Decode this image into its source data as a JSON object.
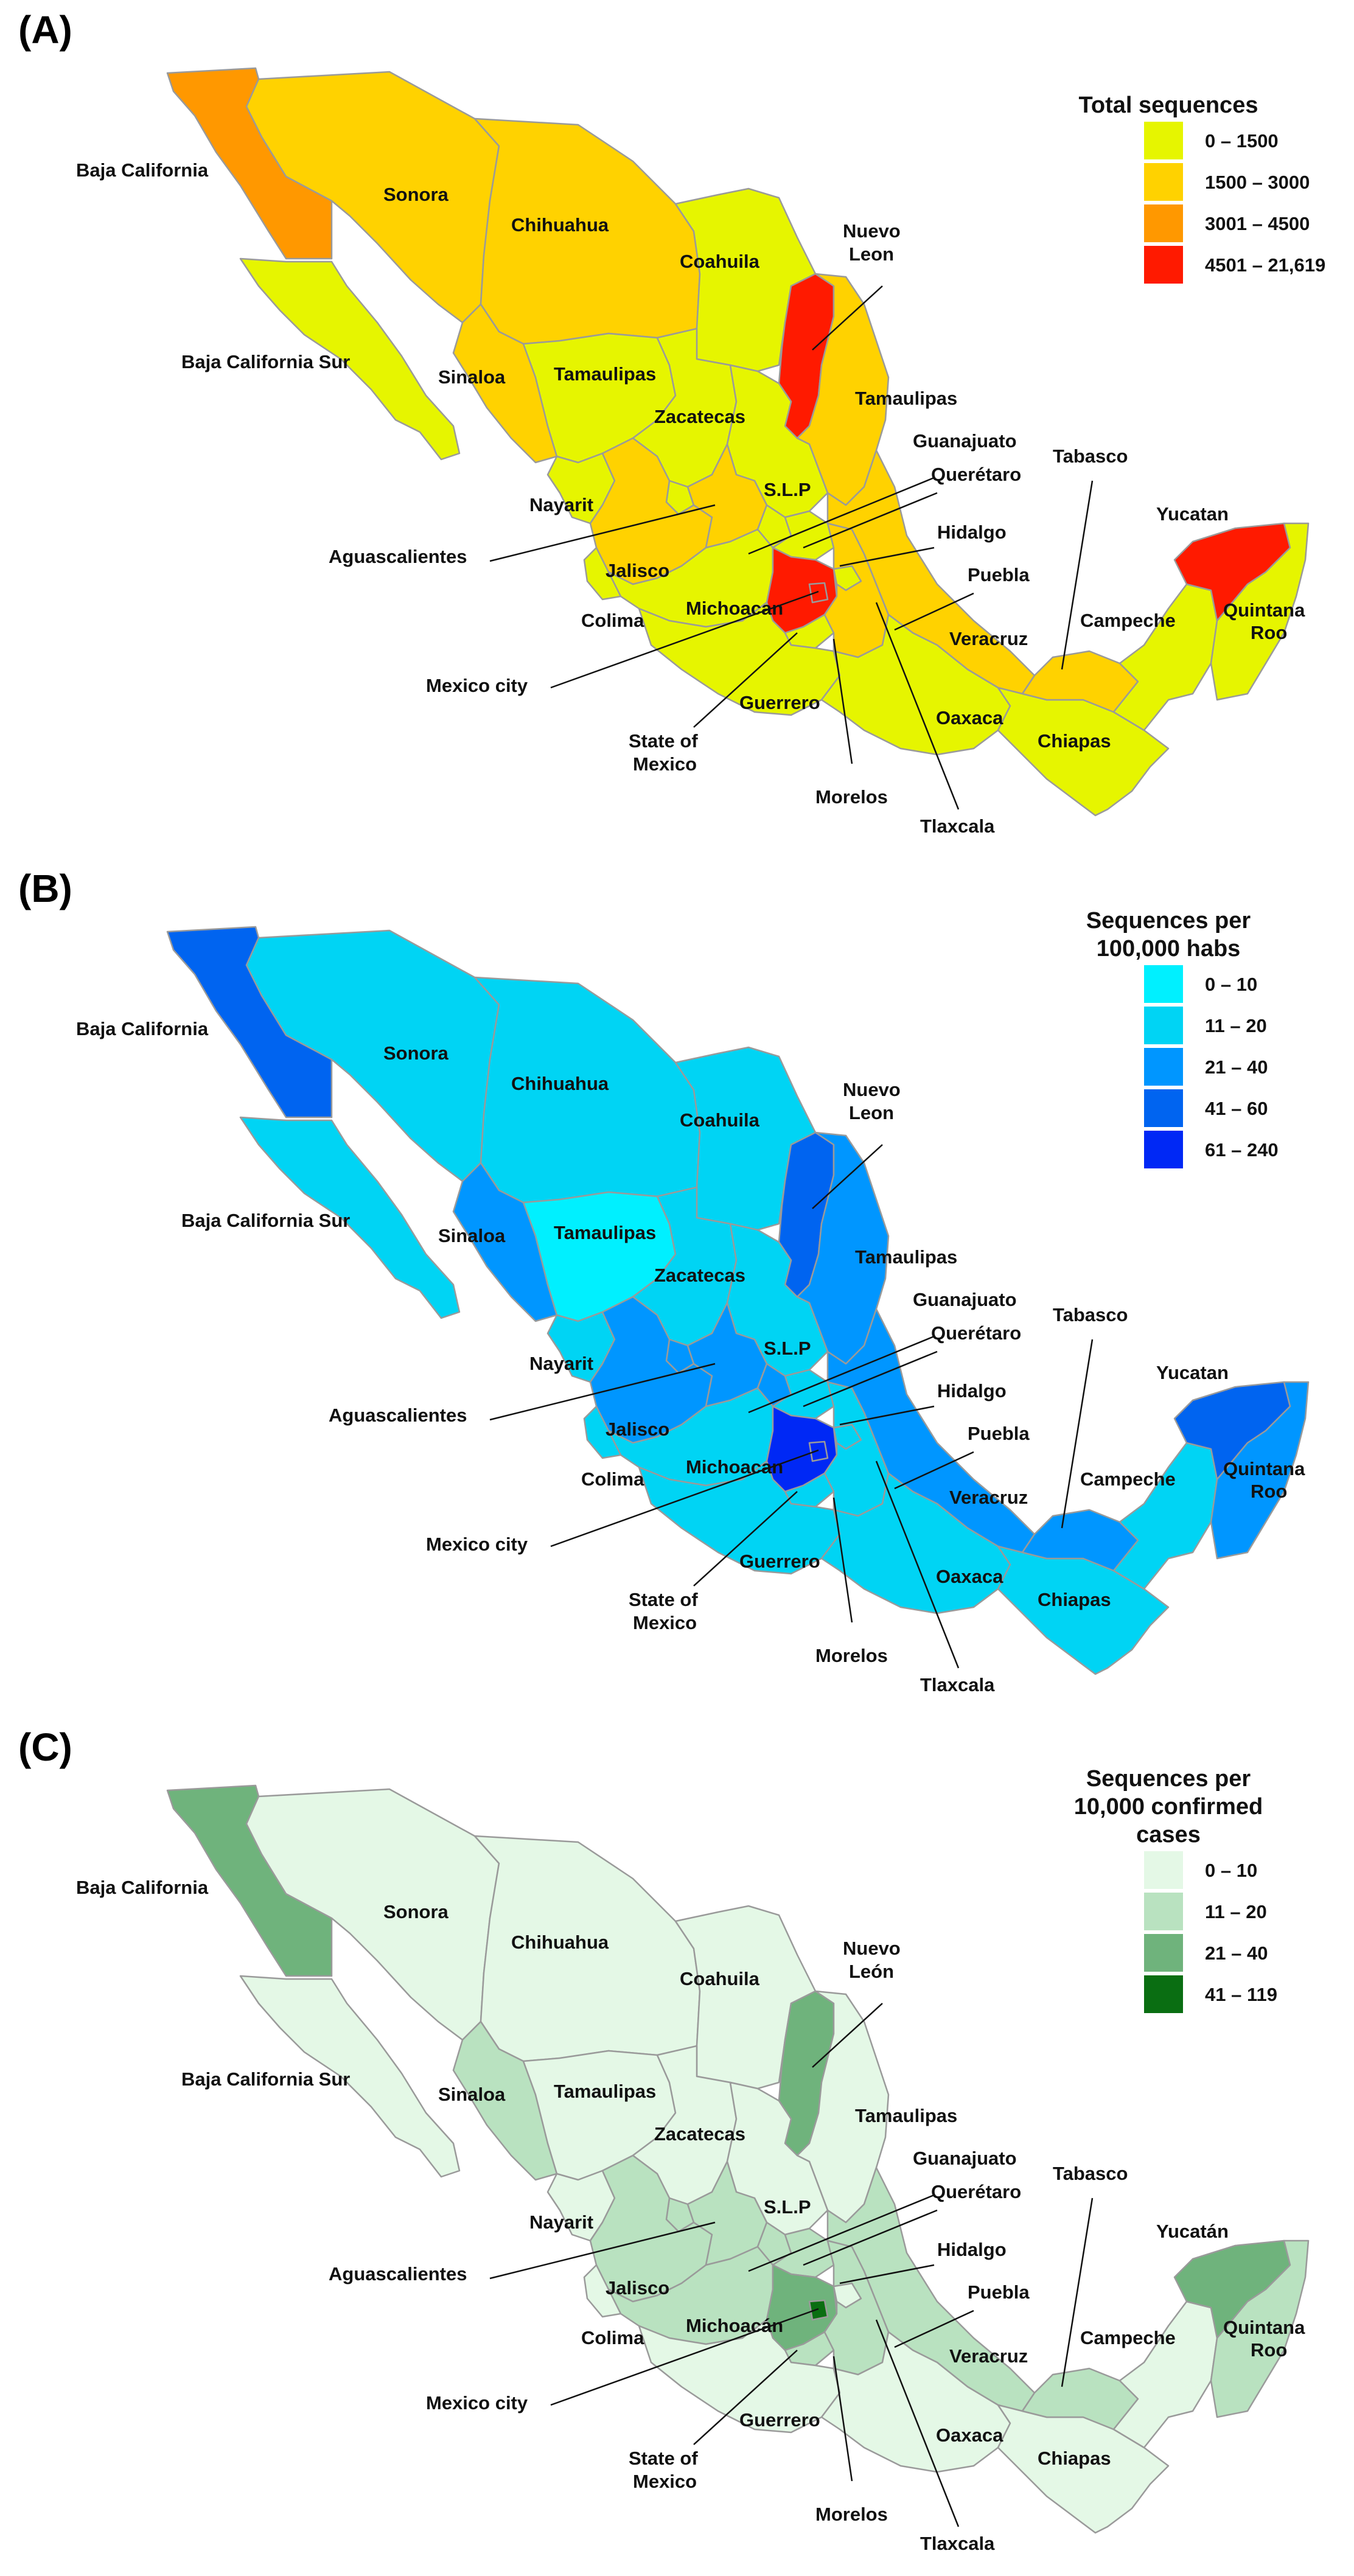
{
  "panels": [
    {
      "label": "(A)",
      "legend": {
        "title": "Total sequences",
        "items": [
          {
            "label": "0 – 1500",
            "color": "#e6f500"
          },
          {
            "label": "1500 – 3000",
            "color": "#ffd200"
          },
          {
            "label": "3001 – 4500",
            "color": "#ff9800"
          },
          {
            "label": "4501 – 21,619",
            "color": "#ff1a00"
          }
        ]
      },
      "states": {
        "baja_california": "#ff9800",
        "baja_california_sur": "#e6f500",
        "sonora": "#ffd200",
        "chihuahua": "#ffd200",
        "coahuila": "#e6f500",
        "nuevo_leon": "#ff1a00",
        "tamaulipas": "#ffd200",
        "sinaloa": "#ffd200",
        "durango": "#e6f500",
        "zacatecas": "#e6f500",
        "slp": "#e6f500",
        "nayarit": "#e6f500",
        "jalisco": "#ffd200",
        "aguascalientes": "#e6f500",
        "guanajuato": "#ffd200",
        "queretaro": "#e6f500",
        "hidalgo": "#e6f500",
        "michoacan": "#e6f500",
        "colima": "#e6f500",
        "mexico": "#ff1a00",
        "cdmx": "#ff1a00",
        "morelos": "#e6f500",
        "tlaxcala": "#e6f500",
        "puebla": "#ffd200",
        "veracruz": "#ffd200",
        "guerrero": "#e6f500",
        "oaxaca": "#e6f500",
        "chiapas": "#e6f500",
        "tabasco": "#ffd200",
        "campeche": "#e6f500",
        "yucatan": "#ff1a00",
        "quintana_roo": "#e6f500"
      },
      "names": {
        "baja_california": "Baja California",
        "baja_california_sur": "Baja California Sur",
        "sonora": "Sonora",
        "chihuahua": "Chihuahua",
        "coahuila": "Coahuila",
        "nuevo_leon_1": "Nuevo",
        "nuevo_leon_2": "Leon",
        "sinaloa": "Sinaloa",
        "durango_label": "Tamaulipas",
        "tamaulipas": "Tamaulipas",
        "zacatecas": "Zacatecas",
        "guanajuato": "Guanajuato",
        "slp": "S.L.P",
        "queretaro": "Querétaro",
        "nayarit": "Nayarit",
        "aguascalientes": "Aguascalientes",
        "hidalgo": "Hidalgo",
        "jalisco": "Jalisco",
        "puebla": "Puebla",
        "colima": "Colima",
        "michoacan": "Michoacan",
        "veracruz": "Veracruz",
        "mexico_city": "Mexico city",
        "guerrero": "Guerrero",
        "oaxaca": "Oaxaca",
        "state_of_mexico_1": "State of",
        "state_of_mexico_2": "Mexico",
        "morelos": "Morelos",
        "tlaxcala": "Tlaxcala",
        "chiapas": "Chiapas",
        "tabasco": "Tabasco",
        "campeche": "Campeche",
        "yucatan": "Yucatan",
        "quintana_roo_1": "Quintana",
        "quintana_roo_2": "Roo"
      }
    },
    {
      "label": "(B)",
      "legend": {
        "title": "Sequences per\n100,000 habs",
        "items": [
          {
            "label": "0 – 10",
            "color": "#00f0ff"
          },
          {
            "label": "11 – 20",
            "color": "#00d4f4"
          },
          {
            "label": "21 – 40",
            "color": "#0096ff"
          },
          {
            "label": "41 – 60",
            "color": "#0064f0"
          },
          {
            "label": "61 – 240",
            "color": "#0028f5"
          }
        ]
      },
      "states": {
        "baja_california": "#0064f0",
        "baja_california_sur": "#00d4f4",
        "sonora": "#00d4f4",
        "chihuahua": "#00d4f4",
        "coahuila": "#00d4f4",
        "nuevo_leon": "#0064f0",
        "tamaulipas": "#0096ff",
        "sinaloa": "#0096ff",
        "durango": "#00f0ff",
        "zacatecas": "#00d4f4",
        "slp": "#00d4f4",
        "nayarit": "#00d4f4",
        "jalisco": "#0096ff",
        "aguascalientes": "#0096ff",
        "guanajuato": "#0096ff",
        "queretaro": "#0096ff",
        "hidalgo": "#00d4f4",
        "michoacan": "#00d4f4",
        "colima": "#00d4f4",
        "mexico": "#0028f5",
        "cdmx": "#0028f5",
        "morelos": "#00d4f4",
        "tlaxcala": "#00d4f4",
        "puebla": "#00d4f4",
        "veracruz": "#0096ff",
        "guerrero": "#00d4f4",
        "oaxaca": "#00d4f4",
        "chiapas": "#00d4f4",
        "tabasco": "#0096ff",
        "campeche": "#00d4f4",
        "yucatan": "#0064f0",
        "quintana_roo": "#0096ff"
      },
      "names": {
        "baja_california": "Baja California",
        "baja_california_sur": "Baja California Sur",
        "sonora": "Sonora",
        "chihuahua": "Chihuahua",
        "coahuila": "Coahuila",
        "nuevo_leon_1": "Nuevo",
        "nuevo_leon_2": "Leon",
        "sinaloa": "Sinaloa",
        "durango_label": "Tamaulipas",
        "tamaulipas": "Tamaulipas",
        "zacatecas": "Zacatecas",
        "guanajuato": "Guanajuato",
        "slp": "S.L.P",
        "queretaro": "Querétaro",
        "nayarit": "Nayarit",
        "aguascalientes": "Aguascalientes",
        "hidalgo": "Hidalgo",
        "jalisco": "Jalisco",
        "puebla": "Puebla",
        "colima": "Colima",
        "michoacan": "Michoacan",
        "veracruz": "Veracruz",
        "mexico_city": "Mexico city",
        "guerrero": "Guerrero",
        "oaxaca": "Oaxaca",
        "state_of_mexico_1": "State of",
        "state_of_mexico_2": "Mexico",
        "morelos": "Morelos",
        "tlaxcala": "Tlaxcala",
        "chiapas": "Chiapas",
        "tabasco": "Tabasco",
        "campeche": "Campeche",
        "yucatan": "Yucatan",
        "quintana_roo_1": "Quintana",
        "quintana_roo_2": "Roo"
      }
    },
    {
      "label": "(C)",
      "legend": {
        "title": "Sequences per\n10,000 confirmed\ncases",
        "items": [
          {
            "label": "0 – 10",
            "color": "#e4f8e6"
          },
          {
            "label": "11 – 20",
            "color": "#b9e2c0"
          },
          {
            "label": "21 – 40",
            "color": "#6fb37c"
          },
          {
            "label": "41 – 119",
            "color": "#0a6e12"
          }
        ]
      },
      "states": {
        "baja_california": "#6fb37c",
        "baja_california_sur": "#e4f8e6",
        "sonora": "#e4f8e6",
        "chihuahua": "#e4f8e6",
        "coahuila": "#e4f8e6",
        "nuevo_leon": "#6fb37c",
        "tamaulipas": "#e4f8e6",
        "sinaloa": "#b9e2c0",
        "durango": "#e4f8e6",
        "zacatecas": "#e4f8e6",
        "slp": "#e4f8e6",
        "nayarit": "#e4f8e6",
        "jalisco": "#b9e2c0",
        "aguascalientes": "#b9e2c0",
        "guanajuato": "#b9e2c0",
        "queretaro": "#b9e2c0",
        "hidalgo": "#b9e2c0",
        "michoacan": "#b9e2c0",
        "colima": "#e4f8e6",
        "mexico": "#6fb37c",
        "cdmx": "#0a6e12",
        "morelos": "#b9e2c0",
        "tlaxcala": "#e4f8e6",
        "puebla": "#b9e2c0",
        "veracruz": "#b9e2c0",
        "guerrero": "#e4f8e6",
        "oaxaca": "#e4f8e6",
        "chiapas": "#e4f8e6",
        "tabasco": "#b9e2c0",
        "campeche": "#e4f8e6",
        "yucatan": "#6fb37c",
        "quintana_roo": "#b9e2c0"
      },
      "names": {
        "baja_california": "Baja California",
        "baja_california_sur": "Baja California Sur",
        "sonora": "Sonora",
        "chihuahua": "Chihuahua",
        "coahuila": "Coahuila",
        "nuevo_leon_1": "Nuevo",
        "nuevo_leon_2": "León",
        "sinaloa": "Sinaloa",
        "durango_label": "Tamaulipas",
        "tamaulipas": "Tamaulipas",
        "zacatecas": "Zacatecas",
        "guanajuato": "Guanajuato",
        "slp": "S.L.P",
        "queretaro": "Querétaro",
        "nayarit": "Nayarit",
        "aguascalientes": "Aguascalientes",
        "hidalgo": "Hidalgo",
        "jalisco": "Jalisco",
        "puebla": "Puebla",
        "colima": "Colima",
        "michoacan": "Michoacán",
        "veracruz": "Veracruz",
        "mexico_city": "Mexico city",
        "guerrero": "Guerrero",
        "oaxaca": "Oaxaca",
        "state_of_mexico_1": "State of",
        "state_of_mexico_2": "Mexico",
        "morelos": "Morelos",
        "tlaxcala": "Tlaxcala",
        "chiapas": "Chiapas",
        "tabasco": "Tabasco",
        "campeche": "Campeche",
        "yucatan": "Yucatán",
        "quintana_roo_1": "Quintana",
        "quintana_roo_2": "Roo"
      }
    }
  ]
}
